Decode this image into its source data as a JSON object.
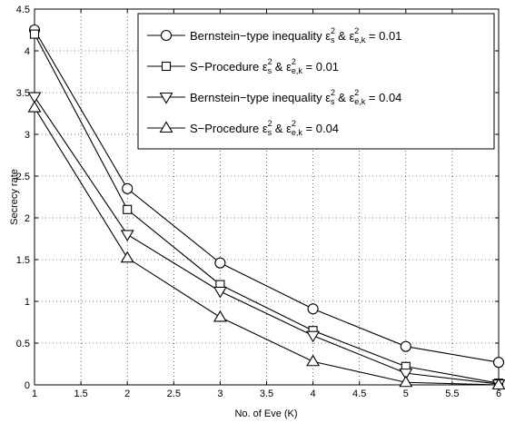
{
  "chart_data": {
    "type": "line",
    "xlabel": "No. of Eve (K)",
    "ylabel": "Secrecy rate",
    "xlim": [
      1,
      6
    ],
    "ylim": [
      0,
      4.5
    ],
    "xticks": [
      "1",
      "1.5",
      "2",
      "2.5",
      "3",
      "3.5",
      "4",
      "4.5",
      "5",
      "5.5",
      "6"
    ],
    "yticks": [
      "0",
      "0.5",
      "1",
      "1.5",
      "2",
      "2.5",
      "3",
      "3.5",
      "4",
      "4.5"
    ],
    "grid": true,
    "legend_position": "top-right",
    "x": [
      1,
      2,
      3,
      4,
      5,
      6
    ],
    "series": [
      {
        "name": "Bernstein−type inequality",
        "eps_value": "0.01",
        "marker": "circle",
        "values": [
          4.25,
          2.35,
          1.46,
          0.91,
          0.46,
          0.27
        ]
      },
      {
        "name": "S−Procedure",
        "eps_value": "0.01",
        "marker": "square",
        "values": [
          4.2,
          2.1,
          1.2,
          0.65,
          0.22,
          0.02
        ]
      },
      {
        "name": "Bernstein−type inequality",
        "eps_value": "0.04",
        "marker": "triangle-down",
        "values": [
          3.45,
          1.8,
          1.12,
          0.59,
          0.14,
          0.01
        ]
      },
      {
        "name": "S−Procedure",
        "eps_value": "0.04",
        "marker": "triangle-up",
        "values": [
          3.32,
          1.52,
          0.81,
          0.28,
          0.03,
          0.0
        ]
      }
    ],
    "legend_math": {
      "eps": "ε",
      "s": "s",
      "ek": "e,k",
      "sq": "2",
      "amp": "&",
      "eq": "="
    }
  }
}
